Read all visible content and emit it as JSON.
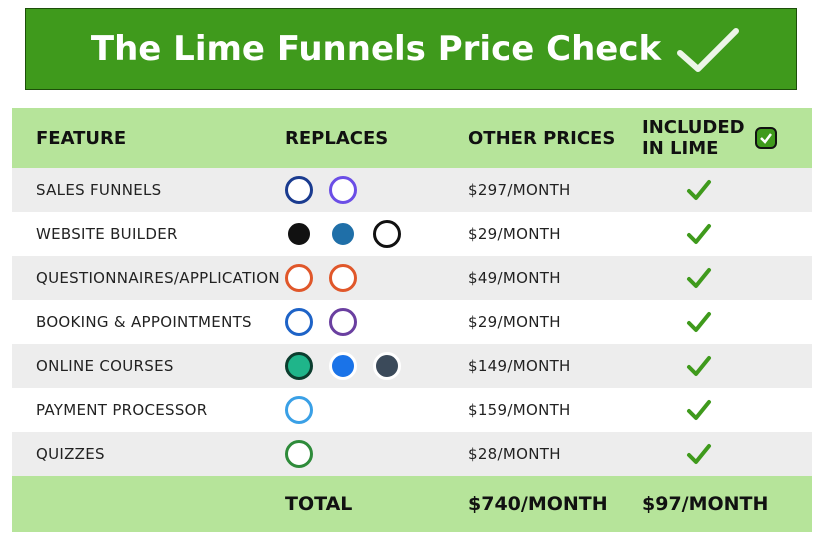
{
  "header": {
    "title": "The Lime Funnels Price Check"
  },
  "table": {
    "columns": [
      "FEATURE",
      "REPLACES",
      "OTHER PRICES",
      "INCLUDED IN LIME"
    ],
    "rows": [
      {
        "feature": "SALES FUNNELS",
        "price": "$297/MONTH"
      },
      {
        "feature": "WEBSITE BUILDER",
        "price": "$29/MONTH"
      },
      {
        "feature": "QUESTIONNAIRES/APPLICATION",
        "price": "$49/MONTH"
      },
      {
        "feature": "BOOKING & APPOINTMENTS",
        "price": "$29/MONTH"
      },
      {
        "feature": "ONLINE COURSES",
        "price": "$149/MONTH"
      },
      {
        "feature": "PAYMENT PROCESSOR",
        "price": "$159/MONTH"
      },
      {
        "feature": "QUIZZES",
        "price": "$28/MONTH"
      }
    ],
    "total": {
      "label": "TOTAL",
      "other": "$740/MONTH",
      "lime": "$97/MONTH"
    }
  }
}
